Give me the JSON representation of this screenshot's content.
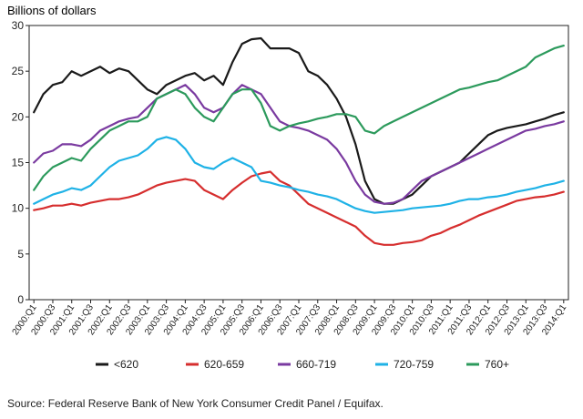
{
  "chart_data": {
    "type": "line",
    "ylabel": "Billions of dollars",
    "ylim": [
      0,
      30
    ],
    "yticks": [
      0,
      5,
      10,
      15,
      20,
      25,
      30
    ],
    "grid": false,
    "legend_position": "bottom",
    "x": [
      "2000:Q1",
      "2000:Q2",
      "2000:Q3",
      "2000:Q4",
      "2001:Q1",
      "2001:Q2",
      "2001:Q3",
      "2001:Q4",
      "2002:Q1",
      "2002:Q2",
      "2002:Q3",
      "2002:Q4",
      "2003:Q1",
      "2003:Q2",
      "2003:Q3",
      "2003:Q4",
      "2004:Q1",
      "2004:Q2",
      "2004:Q3",
      "2004:Q4",
      "2005:Q1",
      "2005:Q2",
      "2005:Q3",
      "2005:Q4",
      "2006:Q1",
      "2006:Q2",
      "2006:Q3",
      "2006:Q4",
      "2007:Q1",
      "2007:Q2",
      "2007:Q3",
      "2007:Q4",
      "2008:Q1",
      "2008:Q2",
      "2008:Q3",
      "2008:Q4",
      "2009:Q1",
      "2009:Q2",
      "2009:Q3",
      "2009:Q4",
      "2010:Q1",
      "2010:Q2",
      "2010:Q3",
      "2010:Q4",
      "2011:Q1",
      "2011:Q2",
      "2011:Q3",
      "2011:Q4",
      "2012:Q1",
      "2012:Q2",
      "2012:Q3",
      "2012:Q4",
      "2013:Q1",
      "2013:Q2",
      "2013:Q3",
      "2013:Q4",
      "2014:Q1"
    ],
    "xtick_labels": [
      "2000:Q1",
      "2000:Q3",
      "2001:Q1",
      "2001:Q3",
      "2002:Q1",
      "2002:Q3",
      "2003:Q1",
      "2003:Q3",
      "2004:Q1",
      "2004:Q3",
      "2005:Q1",
      "2005:Q3",
      "2006:Q1",
      "2006:Q3",
      "2007:Q1",
      "2007:Q3",
      "2008:Q1",
      "2008:Q3",
      "2009:Q1",
      "2009:Q3",
      "2010:Q1",
      "2010:Q3",
      "2011:Q1",
      "2011:Q3",
      "2012:Q1",
      "2012:Q3",
      "2013:Q1",
      "2013:Q3",
      "2014:Q1"
    ],
    "series": [
      {
        "name": "<620",
        "color": "#1a1a1a",
        "values": [
          20.5,
          22.5,
          23.5,
          23.8,
          25,
          24.5,
          25,
          25.5,
          24.8,
          25.3,
          25,
          24,
          23,
          22.5,
          23.5,
          24,
          24.5,
          24.8,
          24,
          24.5,
          23.5,
          26,
          28,
          28.5,
          28.6,
          27.5,
          27.5,
          27.5,
          27,
          25,
          24.5,
          23.5,
          22,
          20,
          17,
          13,
          11,
          10.5,
          10.5,
          11,
          11.5,
          12.5,
          13.5,
          14,
          14.5,
          15,
          16,
          17,
          18,
          18.5,
          18.8,
          19,
          19.2,
          19.5,
          19.8,
          20.2,
          20.5
        ]
      },
      {
        "name": "620-659",
        "color": "#d62e2e",
        "values": [
          9.8,
          10,
          10.3,
          10.3,
          10.5,
          10.3,
          10.6,
          10.8,
          11,
          11,
          11.2,
          11.5,
          12,
          12.5,
          12.8,
          13,
          13.2,
          13,
          12,
          11.5,
          11,
          12,
          12.8,
          13.5,
          13.8,
          14,
          13,
          12.5,
          11.5,
          10.5,
          10,
          9.5,
          9,
          8.5,
          8,
          7,
          6.2,
          6,
          6,
          6.2,
          6.3,
          6.5,
          7,
          7.3,
          7.8,
          8.2,
          8.7,
          9.2,
          9.6,
          10,
          10.4,
          10.8,
          11,
          11.2,
          11.3,
          11.5,
          11.8
        ]
      },
      {
        "name": "660-719",
        "color": "#7a3aa0",
        "values": [
          15,
          16,
          16.3,
          17,
          17,
          16.8,
          17.5,
          18.5,
          19,
          19.5,
          19.8,
          20,
          21,
          22,
          22.5,
          23,
          23.5,
          22.5,
          21,
          20.5,
          21,
          22.5,
          23.5,
          23,
          22.5,
          21,
          19.5,
          19,
          18.8,
          18.5,
          18,
          17.5,
          16.5,
          15,
          13,
          11.5,
          10.7,
          10.5,
          10.6,
          11,
          12,
          13,
          13.5,
          14,
          14.5,
          15,
          15.5,
          16,
          16.5,
          17,
          17.5,
          18,
          18.5,
          18.7,
          19,
          19.2,
          19.5
        ]
      },
      {
        "name": "720-759",
        "color": "#1fb2e6",
        "values": [
          10.5,
          11,
          11.5,
          11.8,
          12.2,
          12,
          12.5,
          13.5,
          14.5,
          15.2,
          15.5,
          15.8,
          16.5,
          17.5,
          17.8,
          17.5,
          16.5,
          15,
          14.5,
          14.3,
          15,
          15.5,
          15,
          14.5,
          13,
          12.8,
          12.5,
          12.3,
          12,
          11.8,
          11.5,
          11.3,
          11,
          10.5,
          10,
          9.7,
          9.5,
          9.6,
          9.7,
          9.8,
          10,
          10.1,
          10.2,
          10.3,
          10.5,
          10.8,
          11,
          11,
          11.2,
          11.3,
          11.5,
          11.8,
          12,
          12.2,
          12.5,
          12.7,
          13
        ]
      },
      {
        "name": "760+",
        "color": "#2c9a5c",
        "values": [
          12,
          13.5,
          14.5,
          15,
          15.5,
          15.2,
          16.5,
          17.5,
          18.5,
          19,
          19.5,
          19.5,
          20,
          22,
          22.5,
          23,
          22.5,
          21,
          20,
          19.5,
          21,
          22.5,
          23,
          23,
          21.5,
          19,
          18.5,
          19,
          19.3,
          19.5,
          19.8,
          20,
          20.3,
          20.3,
          20,
          18.5,
          18.2,
          19,
          19.5,
          20,
          20.5,
          21,
          21.5,
          22,
          22.5,
          23,
          23.2,
          23.5,
          23.8,
          24,
          24.5,
          25,
          25.5,
          26.5,
          27,
          27.5,
          27.8
        ]
      }
    ],
    "source": "Source: Federal Reserve Bank of New York Consumer Credit Panel / Equifax."
  }
}
